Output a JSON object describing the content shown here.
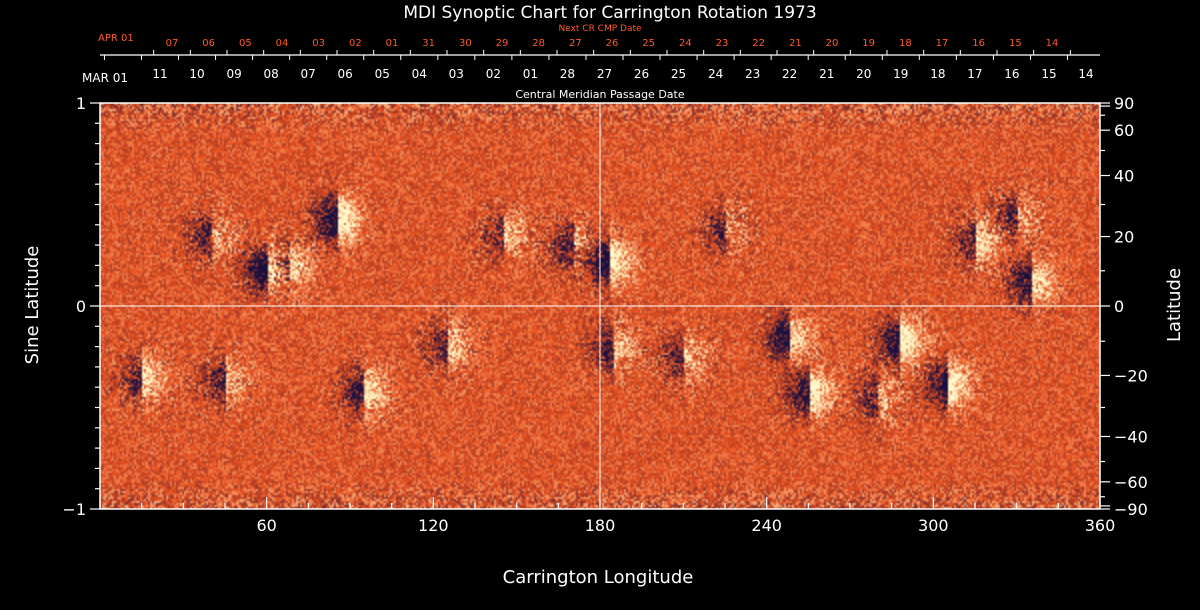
{
  "chart_data": {
    "type": "heatmap",
    "title": "MDI Synoptic Chart for Carrington Rotation 1973",
    "xlabel": "Carrington Longitude",
    "ylabel_left": "Sine Latitude",
    "ylabel_right": "Latitude",
    "xlim": [
      0,
      360
    ],
    "ylim": [
      -1,
      1
    ],
    "x_ticks": [
      60,
      120,
      180,
      240,
      300,
      360
    ],
    "y_ticks_left": [
      {
        "v": 1,
        "label": "1"
      },
      {
        "v": 0,
        "label": "0"
      },
      {
        "v": -1,
        "label": "−1"
      }
    ],
    "lat_ticks": [
      {
        "deg": 90,
        "label": "90"
      },
      {
        "deg": 60,
        "label": "60"
      },
      {
        "deg": 40,
        "label": "40"
      },
      {
        "deg": 20,
        "label": "20"
      },
      {
        "deg": 0,
        "label": "0"
      },
      {
        "deg": -20,
        "label": "−20"
      },
      {
        "deg": -40,
        "label": "−40"
      },
      {
        "deg": -60,
        "label": "−60"
      },
      {
        "deg": -90,
        "label": "−90"
      }
    ],
    "grid_lines": {
      "longitude": 180,
      "sine_latitude": 0
    },
    "cmp_caption": "Central Meridian Passage Date",
    "cmp_start_label": "MAR 01",
    "cmp_dates": [
      "11",
      "10",
      "09",
      "08",
      "07",
      "06",
      "05",
      "04",
      "03",
      "02",
      "01",
      "28",
      "27",
      "26",
      "25",
      "24",
      "23",
      "22",
      "21",
      "20",
      "19",
      "18",
      "17",
      "16",
      "15",
      "14"
    ],
    "next_cr_caption": "Next CR CMP Date",
    "next_cr_start_label": "APR 01",
    "next_cr_dates": [
      "07",
      "06",
      "05",
      "04",
      "03",
      "02",
      "01",
      "31",
      "30",
      "29",
      "28",
      "27",
      "26",
      "25",
      "24",
      "23",
      "22",
      "21",
      "20",
      "19",
      "18",
      "17",
      "16",
      "15",
      "14"
    ],
    "colors": {
      "background": "#000000",
      "field_base": "#e8501e",
      "positive_polarity": "#fff8c8",
      "negative_polarity": "#1a1040",
      "red_labels": "#ff5a2a"
    },
    "active_regions": [
      {
        "lon": 60,
        "sinlat": 0.18,
        "pos": 0.8,
        "neg": 1.0
      },
      {
        "lon": 85,
        "sinlat": 0.43,
        "pos": 1.0,
        "neg": 0.9
      },
      {
        "lon": 68,
        "sinlat": 0.2,
        "pos": 0.4,
        "neg": 0.5
      },
      {
        "lon": 40,
        "sinlat": 0.35,
        "pos": 0.3,
        "neg": 0.6
      },
      {
        "lon": 145,
        "sinlat": 0.35,
        "pos": 0.5,
        "neg": 0.4
      },
      {
        "lon": 183,
        "sinlat": 0.22,
        "pos": 0.9,
        "neg": 1.0
      },
      {
        "lon": 170,
        "sinlat": 0.3,
        "pos": 0.3,
        "neg": 0.6
      },
      {
        "lon": 225,
        "sinlat": 0.38,
        "pos": 0.2,
        "neg": 0.5
      },
      {
        "lon": 315,
        "sinlat": 0.32,
        "pos": 0.6,
        "neg": 0.5
      },
      {
        "lon": 335,
        "sinlat": 0.12,
        "pos": 0.7,
        "neg": 0.8
      },
      {
        "lon": 330,
        "sinlat": 0.45,
        "pos": 0.3,
        "neg": 0.5
      },
      {
        "lon": 15,
        "sinlat": -0.35,
        "pos": 0.6,
        "neg": 0.6
      },
      {
        "lon": 45,
        "sinlat": -0.36,
        "pos": 0.4,
        "neg": 0.6
      },
      {
        "lon": 95,
        "sinlat": -0.42,
        "pos": 0.7,
        "neg": 0.7
      },
      {
        "lon": 125,
        "sinlat": -0.19,
        "pos": 0.5,
        "neg": 0.5
      },
      {
        "lon": 185,
        "sinlat": -0.2,
        "pos": 0.5,
        "neg": 0.7
      },
      {
        "lon": 210,
        "sinlat": -0.25,
        "pos": 0.4,
        "neg": 0.5
      },
      {
        "lon": 248,
        "sinlat": -0.15,
        "pos": 0.6,
        "neg": 0.9
      },
      {
        "lon": 255,
        "sinlat": -0.42,
        "pos": 0.9,
        "neg": 0.8
      },
      {
        "lon": 288,
        "sinlat": -0.17,
        "pos": 0.9,
        "neg": 0.9
      },
      {
        "lon": 305,
        "sinlat": -0.38,
        "pos": 0.9,
        "neg": 0.8
      },
      {
        "lon": 280,
        "sinlat": -0.45,
        "pos": 0.3,
        "neg": 0.5
      }
    ]
  }
}
